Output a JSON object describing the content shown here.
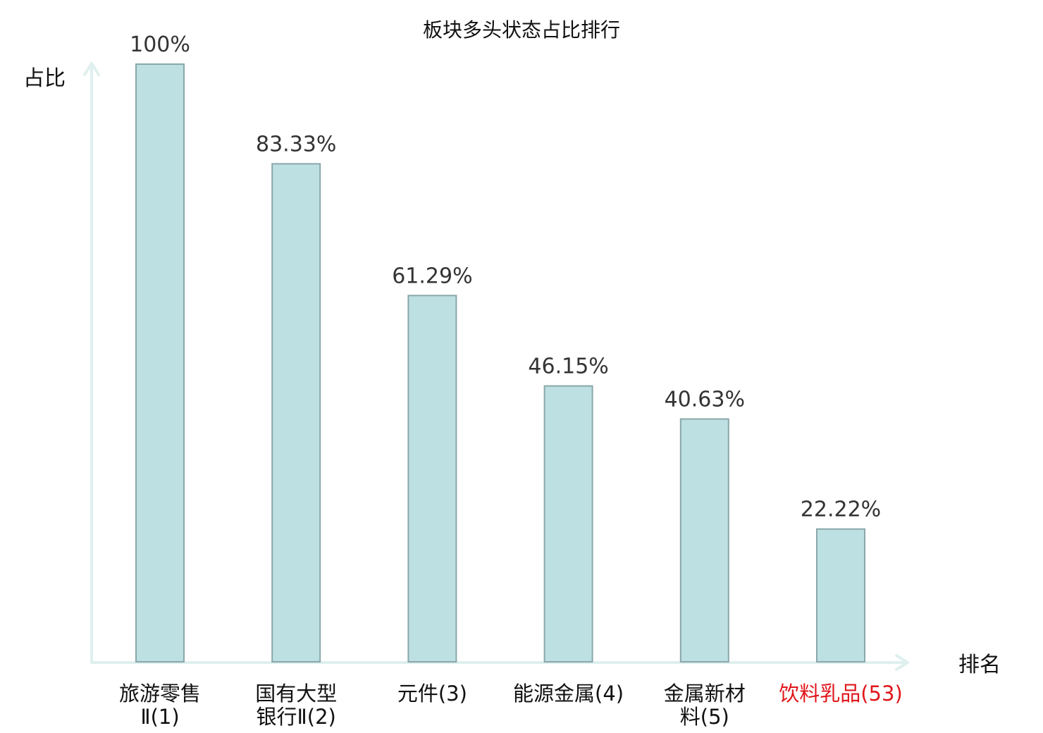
{
  "chart_data": {
    "type": "bar",
    "title": "板块多头状态占比排行",
    "xlabel": "排名",
    "ylabel": "占比",
    "ylim": [
      0,
      100
    ],
    "grid": false,
    "categories": [
      {
        "lines": [
          "旅游零售",
          "Ⅱ(1)"
        ],
        "highlight": false
      },
      {
        "lines": [
          "国有大型",
          "银行Ⅱ(2)"
        ],
        "highlight": false
      },
      {
        "lines": [
          "元件(3)"
        ],
        "highlight": false
      },
      {
        "lines": [
          "能源金属(4)"
        ],
        "highlight": false
      },
      {
        "lines": [
          "金属新材",
          "料(5)"
        ],
        "highlight": false
      },
      {
        "lines": [
          "饮料乳品(53)"
        ],
        "highlight": true
      }
    ],
    "values": [
      100,
      83.33,
      61.29,
      46.15,
      40.63,
      22.22
    ],
    "value_labels": [
      "100%",
      "83.33%",
      "61.29%",
      "46.15%",
      "40.63%",
      "22.22%"
    ]
  },
  "colors": {
    "bar_fill": "#bde0e3",
    "bar_stroke": "#8aa7aa",
    "axis": "#dff0ee",
    "text": "#111111",
    "value_text": "#333333",
    "highlight_text": "#e0161b"
  }
}
